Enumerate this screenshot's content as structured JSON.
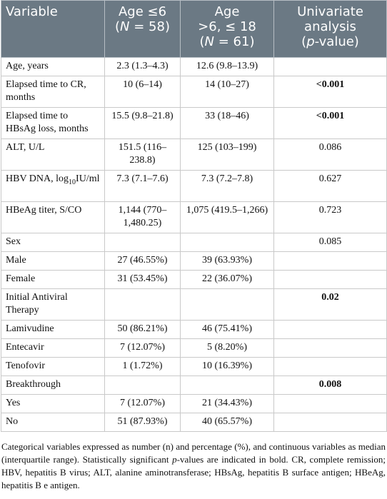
{
  "headers": {
    "variable": "Variable",
    "col_young_line1": "Age ≤6",
    "col_young_line2_pre": "(",
    "col_young_n": "N",
    "col_young_line2_post": " = 58)",
    "col_old_line1": "Age",
    "col_old_line2": ">6, ≤ 18",
    "col_old_line3_pre": "(",
    "col_old_n": "N",
    "col_old_line3_post": " = 61)",
    "col_uni_line1": "Univariate",
    "col_uni_line2": "analysis",
    "col_uni_line3_pre": "(",
    "col_uni_p": "p",
    "col_uni_line3_post": "-value)"
  },
  "rows": [
    {
      "variable": "Age, years",
      "young": "2.3 (1.3–4.3)",
      "old": "12.6 (9.8–13.9)",
      "p": ""
    },
    {
      "variable": "Elapsed time to CR, months",
      "young": "10 (6–14)",
      "old": "14 (10–27)",
      "p": "<0.001"
    },
    {
      "variable": "Elapsed time to HBsAg loss, months",
      "young": "15.5 (9.8–21.8)",
      "old": "33 (18–46)",
      "p": "<0.001"
    },
    {
      "variable": "ALT, U/L",
      "young": "151.5 (116–238.8)",
      "old": "125 (103–199)",
      "p": "0.086"
    },
    {
      "variable_pre": "HBV DNA, log",
      "variable_sub": "10",
      "variable_post": "IU/ml",
      "young": "7.3 (7.1–7.6)",
      "old": "7.3 (7.2–7.8)",
      "p": "0.627"
    },
    {
      "variable": "HBeAg titer, S/CO",
      "young": "1,144 (770–1,480.25)",
      "old": "1,075 (419.5–1,266)",
      "p": "0.723"
    },
    {
      "variable": "Sex",
      "young": "",
      "old": "",
      "p": "0.085"
    },
    {
      "variable": "Male",
      "young": "27 (46.55%)",
      "old": "39 (63.93%)",
      "p": ""
    },
    {
      "variable": "Female",
      "young": "31 (53.45%)",
      "old": "22 (36.07%)",
      "p": ""
    },
    {
      "variable": "Initial Antiviral Therapy",
      "young": "",
      "old": "",
      "p": "0.02"
    },
    {
      "variable": "Lamivudine",
      "young": "50 (86.21%)",
      "old": "46 (75.41%)",
      "p": ""
    },
    {
      "variable": "Entecavir",
      "young": "7 (12.07%)",
      "old": "5 (8.20%)",
      "p": ""
    },
    {
      "variable": "Tenofovir",
      "young": "1 (1.72%)",
      "old": "10 (16.39%)",
      "p": ""
    },
    {
      "variable": "Breakthrough",
      "young": "",
      "old": "",
      "p": "0.008"
    },
    {
      "variable": "Yes",
      "young": "7 (12.07%)",
      "old": "21 (34.43%)",
      "p": ""
    },
    {
      "variable": "No",
      "young": "51 (87.93%)",
      "old": "40 (65.57%)",
      "p": ""
    }
  ],
  "footnote": {
    "part1": "Categorical variables expressed as number (n) and percentage (%), and continuous variables as median (interquartile range). Statistically significant ",
    "p_italic": "p",
    "part2": "-values are indicated in bold. CR, complete remission; HBV, hepatitis B virus; ALT, alanine aminotransferase; HBsAg, hepatitis B surface antigen; HBeAg, hepatitis B e antigen."
  }
}
